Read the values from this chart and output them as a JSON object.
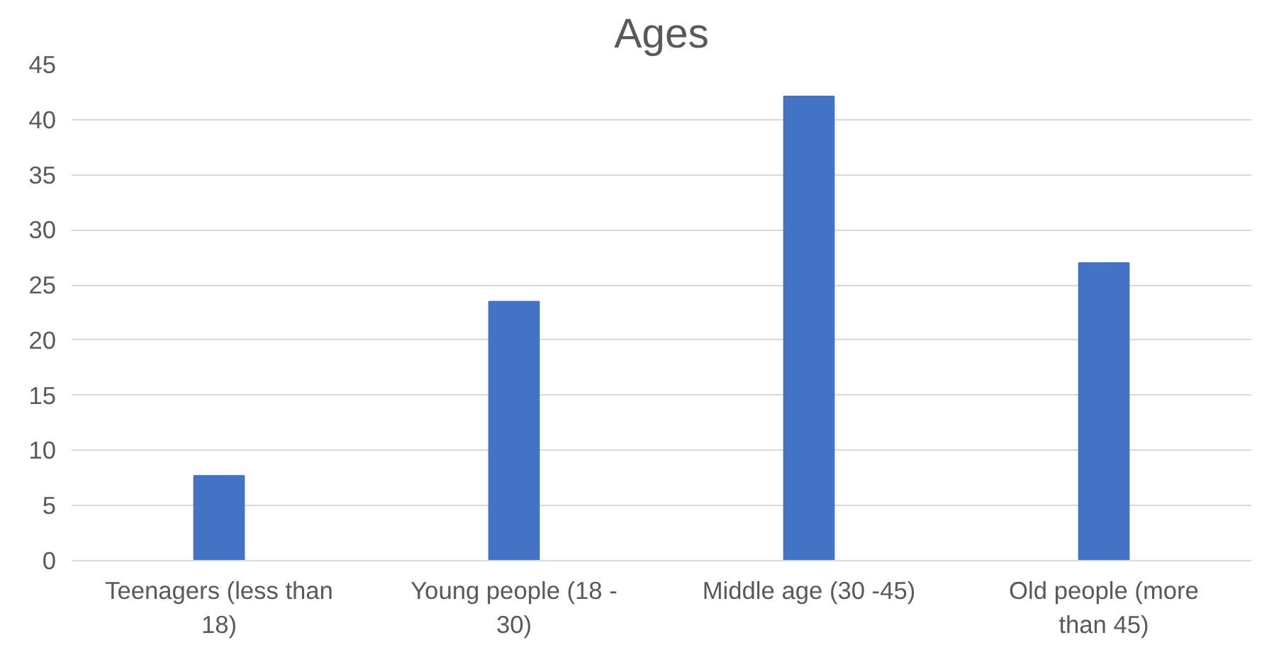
{
  "chart_data": {
    "type": "bar",
    "title": "Ages",
    "categories": [
      "Teenagers (less than 18)",
      "Young people (18 - 30)",
      "Middle age (30 -45)",
      "Old people (more than 45)"
    ],
    "values": [
      7.7,
      23.5,
      42.1,
      27.0
    ],
    "color": "#4472c4",
    "ylim": [
      0,
      45
    ],
    "yticks": [
      0,
      5,
      10,
      15,
      20,
      25,
      30,
      35,
      40,
      45
    ],
    "grid": "y"
  }
}
